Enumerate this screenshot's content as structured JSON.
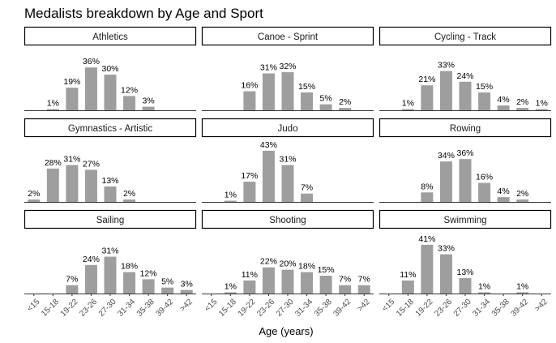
{
  "chart_data": {
    "type": "bar",
    "title": "Medalists breakdown by Age and Sport",
    "xlabel": "Age (years)",
    "ylabel": "",
    "categories": [
      "<15",
      "15-18",
      "19-22",
      "23-26",
      "27-30",
      "31-34",
      "35-38",
      "39-42",
      ">42"
    ],
    "ylim": [
      0,
      45
    ],
    "bar_color": "#9e9e9e",
    "panels": [
      {
        "name": "Athletics",
        "values": [
          null,
          1,
          19,
          36,
          30,
          12,
          3,
          null,
          null
        ]
      },
      {
        "name": "Canoe - Sprint",
        "values": [
          null,
          null,
          16,
          31,
          32,
          15,
          5,
          2,
          null
        ]
      },
      {
        "name": "Cycling - Track",
        "values": [
          null,
          1,
          21,
          33,
          24,
          15,
          4,
          2,
          1
        ]
      },
      {
        "name": "Gymnastics - Artistic",
        "values": [
          2,
          28,
          31,
          27,
          13,
          2,
          null,
          null,
          null
        ]
      },
      {
        "name": "Judo",
        "values": [
          null,
          1,
          17,
          43,
          31,
          7,
          null,
          null,
          null
        ]
      },
      {
        "name": "Rowing",
        "values": [
          null,
          null,
          8,
          34,
          36,
          16,
          4,
          2,
          null
        ]
      },
      {
        "name": "Sailing",
        "values": [
          null,
          null,
          7,
          24,
          31,
          18,
          12,
          5,
          3
        ]
      },
      {
        "name": "Shooting",
        "values": [
          null,
          1,
          11,
          22,
          20,
          18,
          15,
          7,
          7
        ]
      },
      {
        "name": "Swimming",
        "values": [
          null,
          11,
          41,
          33,
          13,
          1,
          null,
          1,
          null
        ]
      }
    ]
  }
}
